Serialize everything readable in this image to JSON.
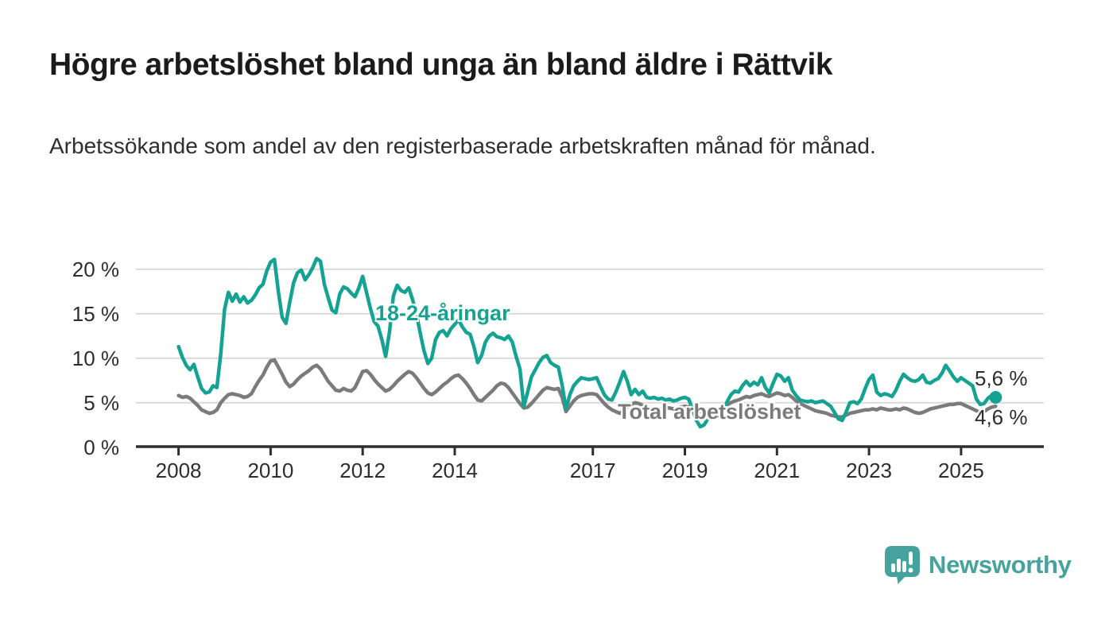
{
  "header": {
    "title": "Högre arbetslöshet bland unga än bland äldre i Rättvik",
    "subtitle": "Arbetssökande som andel av den registerbaserade arbetskraften månad för månad."
  },
  "colors": {
    "accent_teal": "#14a392",
    "total_gray": "#7b7b7b",
    "axis": "#2e2e2e",
    "grid": "#d9d9d9",
    "text": "#1b1b1b",
    "brand_teal": "#45a29c"
  },
  "chart_data": {
    "type": "line",
    "title": "Högre arbetslöshet bland unga än bland äldre i Rättvik",
    "subtitle": "Arbetssökande som andel av den registerbaserade arbetskraften månad för månad.",
    "xlabel": "",
    "ylabel": "",
    "unit": "%",
    "grid": true,
    "legend_position": "inline-labels",
    "xlim": [
      2007.1,
      2026.8
    ],
    "ylim": [
      0,
      22
    ],
    "x_ticks": [
      {
        "value": 2008,
        "label": "2008"
      },
      {
        "value": 2010,
        "label": "2010"
      },
      {
        "value": 2012,
        "label": "2012"
      },
      {
        "value": 2014,
        "label": "2014"
      },
      {
        "value": 2017,
        "label": "2017"
      },
      {
        "value": 2019,
        "label": "2019"
      },
      {
        "value": 2021,
        "label": "2021"
      },
      {
        "value": 2023,
        "label": "2023"
      },
      {
        "value": 2025,
        "label": "2025"
      }
    ],
    "y_ticks": [
      {
        "value": 0,
        "label": "0 %"
      },
      {
        "value": 5,
        "label": "5 %"
      },
      {
        "value": 10,
        "label": "10 %"
      },
      {
        "value": 15,
        "label": "15 %"
      },
      {
        "value": 20,
        "label": "20 %"
      }
    ],
    "series": [
      {
        "name": "18-24-åringar",
        "color": "#14a392",
        "start_year": 2008,
        "frequency": "monthly",
        "end_label": "5,6 %",
        "end_value": 5.6,
        "values": [
          11.3,
          10.1,
          9.2,
          8.7,
          9.3,
          7.9,
          6.6,
          6.1,
          6.2,
          6.9,
          6.7,
          10.5,
          15.5,
          17.4,
          16.4,
          17.2,
          16.3,
          16.9,
          16.2,
          16.5,
          17.1,
          17.9,
          18.3,
          19.8,
          20.8,
          21.1,
          17.5,
          14.6,
          13.9,
          16.3,
          18.5,
          19.6,
          19.9,
          18.8,
          19.4,
          20.2,
          21.2,
          20.9,
          18.3,
          16.8,
          15.4,
          15.1,
          17.2,
          18.0,
          17.8,
          17.3,
          16.9,
          17.9,
          19.2,
          17.4,
          15.6,
          14.1,
          13.6,
          12.1,
          10.2,
          13.0,
          17.0,
          18.2,
          17.6,
          17.4,
          17.9,
          16.6,
          15.0,
          12.8,
          10.8,
          9.4,
          10.0,
          12.1,
          12.9,
          13.1,
          12.5,
          13.3,
          13.8,
          14.3,
          13.5,
          12.9,
          12.7,
          11.3,
          9.5,
          10.3,
          11.8,
          12.5,
          12.8,
          12.4,
          12.3,
          12.1,
          12.5,
          11.8,
          10.2,
          8.8,
          4.6,
          6.2,
          7.9,
          8.7,
          9.5,
          10.1,
          10.3,
          9.5,
          9.2,
          9.0,
          7.0,
          4.3,
          5.9,
          6.9,
          7.4,
          7.8,
          7.7,
          7.6,
          7.7,
          7.8,
          6.8,
          5.9,
          5.4,
          5.3,
          6.2,
          7.3,
          8.5,
          7.4,
          5.9,
          6.5,
          5.9,
          6.3,
          5.6,
          5.5,
          5.6,
          5.4,
          5.5,
          5.3,
          5.4,
          5.2,
          5.3,
          5.5,
          5.6,
          5.4,
          4.2,
          3.0,
          2.3,
          2.5,
          3.2,
          3.4,
          3.3,
          3.6,
          4.2,
          5.1,
          5.9,
          6.3,
          6.2,
          6.9,
          7.4,
          6.9,
          7.3,
          7.0,
          7.8,
          6.7,
          6.1,
          7.2,
          8.2,
          8.0,
          7.4,
          7.8,
          6.4,
          5.8,
          5.3,
          5.2,
          5.1,
          5.2,
          5.0,
          5.1,
          5.2,
          4.9,
          4.6,
          3.9,
          3.2,
          3.0,
          3.9,
          5.0,
          5.1,
          4.9,
          5.4,
          6.6,
          7.6,
          8.1,
          6.2,
          5.8,
          6.0,
          5.9,
          5.7,
          6.4,
          7.4,
          8.2,
          7.8,
          7.5,
          7.4,
          7.6,
          8.1,
          7.3,
          7.2,
          7.5,
          7.7,
          8.3,
          9.2,
          8.6,
          7.9,
          7.4,
          7.8,
          7.5,
          7.2,
          6.9,
          5.4,
          4.8,
          4.9,
          5.5,
          5.8,
          5.6
        ]
      },
      {
        "name": "Total arbetslöshet",
        "color": "#7b7b7b",
        "start_year": 2008,
        "frequency": "monthly",
        "end_label": "4,6 %",
        "end_value": 4.6,
        "values": [
          5.8,
          5.6,
          5.7,
          5.5,
          5.1,
          4.7,
          4.2,
          4.0,
          3.8,
          3.9,
          4.2,
          5.0,
          5.5,
          5.9,
          6.0,
          5.9,
          5.8,
          5.6,
          5.7,
          6.0,
          6.8,
          7.5,
          8.1,
          9.0,
          9.7,
          9.8,
          9.0,
          8.2,
          7.3,
          6.8,
          7.1,
          7.6,
          8.0,
          8.3,
          8.6,
          9.0,
          9.2,
          8.8,
          8.1,
          7.4,
          6.9,
          6.4,
          6.3,
          6.6,
          6.4,
          6.3,
          6.7,
          7.6,
          8.5,
          8.6,
          8.2,
          7.6,
          7.1,
          6.7,
          6.3,
          6.5,
          6.9,
          7.4,
          7.8,
          8.2,
          8.5,
          8.3,
          7.8,
          7.2,
          6.6,
          6.1,
          5.9,
          6.2,
          6.6,
          7.0,
          7.3,
          7.7,
          8.0,
          8.1,
          7.7,
          7.2,
          6.6,
          5.9,
          5.3,
          5.2,
          5.6,
          6.0,
          6.4,
          6.9,
          7.2,
          7.1,
          6.7,
          6.1,
          5.5,
          4.9,
          4.4,
          4.5,
          4.9,
          5.4,
          5.9,
          6.4,
          6.7,
          6.6,
          6.5,
          6.6,
          5.6,
          4.0,
          4.6,
          5.2,
          5.6,
          5.8,
          5.9,
          6.0,
          6.0,
          5.9,
          5.4,
          4.9,
          4.5,
          4.2,
          4.0,
          3.8,
          4.1,
          4.5,
          4.8,
          5.0,
          4.9,
          4.7,
          4.5,
          4.4,
          4.3,
          4.2,
          4.3,
          4.4,
          4.4,
          4.3,
          4.4,
          4.5,
          4.6,
          4.5,
          4.3,
          4.1,
          4.0,
          4.0,
          4.1,
          4.2,
          4.2,
          4.3,
          4.4,
          4.7,
          5.0,
          5.2,
          5.3,
          5.5,
          5.7,
          5.6,
          5.8,
          5.9,
          6.0,
          5.8,
          5.7,
          5.9,
          6.1,
          6.0,
          5.8,
          5.9,
          5.6,
          5.2,
          4.9,
          4.7,
          4.5,
          4.3,
          4.1,
          4.0,
          3.9,
          3.8,
          3.6,
          3.5,
          3.4,
          3.4,
          3.6,
          3.8,
          3.9,
          4.0,
          4.1,
          4.2,
          4.2,
          4.3,
          4.2,
          4.4,
          4.3,
          4.2,
          4.2,
          4.3,
          4.2,
          4.4,
          4.3,
          4.1,
          3.9,
          3.8,
          3.9,
          4.1,
          4.3,
          4.4,
          4.5,
          4.6,
          4.7,
          4.8,
          4.8,
          4.9,
          4.9,
          4.7,
          4.5,
          4.3,
          4.1,
          3.9,
          4.0,
          4.3,
          4.5,
          4.6
        ]
      }
    ]
  },
  "footer": {
    "brand": "Newsworthy"
  }
}
